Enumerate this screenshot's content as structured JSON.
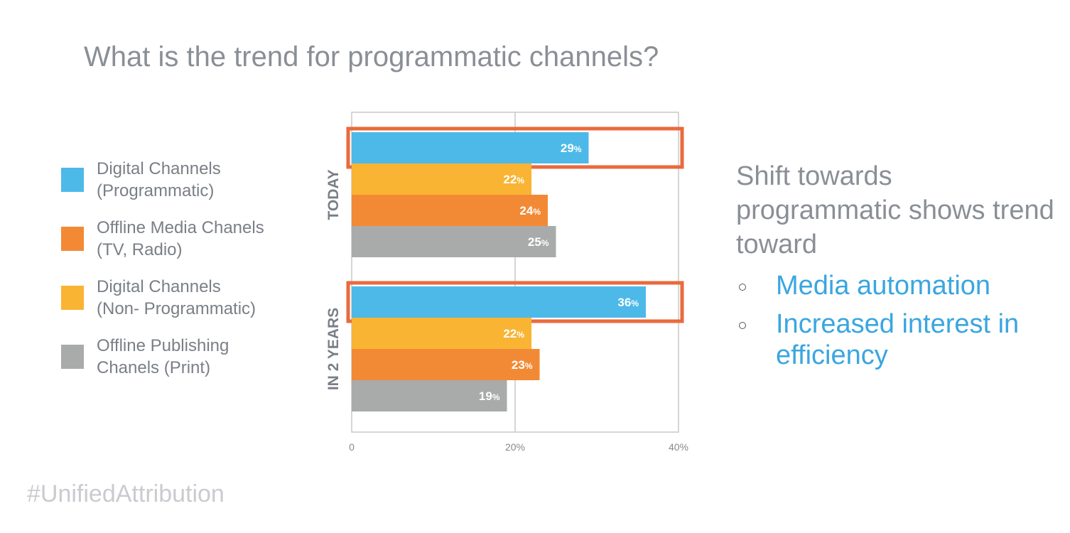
{
  "title": "What is the trend for programmatic channels?",
  "legend": [
    {
      "line1": "Digital Channels",
      "line2": "(Programmatic)",
      "color": "#4db9e8"
    },
    {
      "line1": "Offline Media Chanels",
      "line2": "(TV, Radio)",
      "color": "#f28a35"
    },
    {
      "line1": "Digital Channels",
      "line2": "(Non- Programmatic)",
      "color": "#f9b434"
    },
    {
      "line1": "Offline Publishing",
      "line2": "Chanels (Print)",
      "color": "#a9aaaa"
    }
  ],
  "headline": "Shift towards programmatic shows trend toward",
  "bullets": [
    "Media automation",
    "Increased interest in efficiency"
  ],
  "hashtag": "#UnifiedAttribution",
  "highlight_color": "#e96a3c",
  "chart_data": {
    "type": "bar",
    "orientation": "horizontal",
    "categories": [
      "TODAY",
      "IN 2 YEARS"
    ],
    "series": [
      {
        "name": "Digital Channels (Programmatic)",
        "color": "#4db9e8",
        "values": [
          29,
          36
        ],
        "highlighted": true
      },
      {
        "name": "Digital Channels (Non- Programmatic)",
        "color": "#f9b434",
        "values": [
          22,
          22
        ]
      },
      {
        "name": "Offline Media Chanels (TV, Radio)",
        "color": "#f28a35",
        "values": [
          24,
          23
        ]
      },
      {
        "name": "Offline Publishing Chanels (Print)",
        "color": "#a9aaaa",
        "values": [
          25,
          19
        ]
      }
    ],
    "value_suffix": "%",
    "xlim": [
      0,
      40
    ],
    "ticks": [
      {
        "value": 0,
        "label": "0"
      },
      {
        "value": 20,
        "label": "20%"
      },
      {
        "value": 40,
        "label": "40%"
      }
    ],
    "grid": true
  }
}
